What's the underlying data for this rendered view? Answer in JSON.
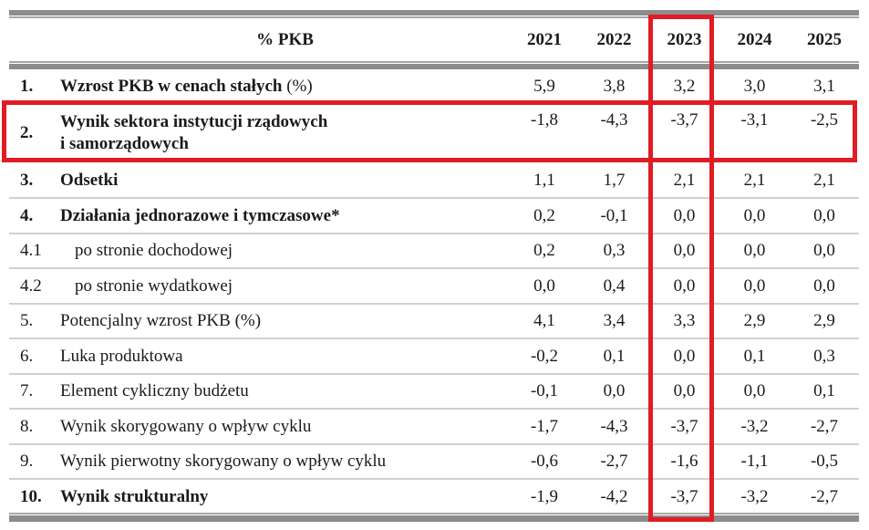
{
  "table": {
    "header": {
      "label": "% PKB",
      "years": [
        "2021",
        "2022",
        "2023",
        "2024",
        "2025"
      ]
    },
    "rows": [
      {
        "num": "1.",
        "label": "Wzrost PKB w cenach stałych",
        "suffix": " (%)",
        "bold": true,
        "values": [
          "5,9",
          "3,8",
          "3,2",
          "3,0",
          "3,1"
        ]
      },
      {
        "num": "2.",
        "label": "Wynik sektora instytucji rządowych",
        "label2": "i samorządowych",
        "bold": true,
        "values": [
          "-1,8",
          "-4,3",
          "-3,7",
          "-3,1",
          "-2,5"
        ]
      },
      {
        "num": "3.",
        "label": "Odsetki",
        "bold": true,
        "values": [
          "1,1",
          "1,7",
          "2,1",
          "2,1",
          "2,1"
        ]
      },
      {
        "num": "4.",
        "label": "Działania jednorazowe i tymczasowe*",
        "bold": true,
        "values": [
          "0,2",
          "-0,1",
          "0,0",
          "0,0",
          "0,0"
        ]
      },
      {
        "num": "4.1",
        "label": "po stronie dochodowej",
        "bold": false,
        "indent": true,
        "values": [
          "0,2",
          "0,3",
          "0,0",
          "0,0",
          "0,0"
        ]
      },
      {
        "num": "4.2",
        "label": "po stronie wydatkowej",
        "bold": false,
        "indent": true,
        "values": [
          "0,0",
          "0,4",
          "0,0",
          "0,0",
          "0,0"
        ]
      },
      {
        "num": "5.",
        "label": "Potencjalny wzrost PKB (%)",
        "bold": false,
        "values": [
          "4,1",
          "3,4",
          "3,3",
          "2,9",
          "2,9"
        ]
      },
      {
        "num": "6.",
        "label": "Luka produktowa",
        "bold": false,
        "values": [
          "-0,2",
          "0,1",
          "0,0",
          "0,1",
          "0,3"
        ]
      },
      {
        "num": "7.",
        "label": "Element cykliczny budżetu",
        "bold": false,
        "values": [
          "-0,1",
          "0,0",
          "0,0",
          "0,0",
          "0,1"
        ]
      },
      {
        "num": "8.",
        "label": "Wynik skorygowany o wpływ cyklu",
        "bold": false,
        "values": [
          "-1,7",
          "-4,3",
          "-3,7",
          "-3,2",
          "-2,7"
        ]
      },
      {
        "num": "9.",
        "label": "Wynik pierwotny skorygowany o wpływ cyklu",
        "bold": false,
        "values": [
          "-0,6",
          "-2,7",
          "-1,6",
          "-1,1",
          "-0,5"
        ]
      },
      {
        "num": "10.",
        "label": "Wynik strukturalny",
        "bold": true,
        "values": [
          "-1,9",
          "-4,2",
          "-3,7",
          "-3,2",
          "-2,7"
        ]
      }
    ]
  },
  "highlights": {
    "color": "#e01c24",
    "column": "2023",
    "row": "2."
  },
  "colors": {
    "rule_band": "#8c8c8c",
    "row_divider": "#d0d0d0",
    "text": "#1a1a1a"
  }
}
